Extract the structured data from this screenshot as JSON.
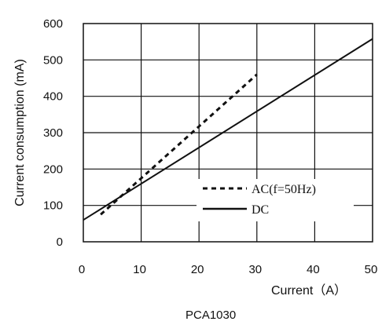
{
  "chart_data": {
    "type": "line",
    "xlabel": "Current（A）",
    "ylabel": "Current consumption (mA)",
    "xlim": [
      0,
      50
    ],
    "ylim": [
      0,
      600
    ],
    "x_ticks": [
      "0",
      "10",
      "20",
      "30",
      "40",
      "50"
    ],
    "y_ticks": [
      "0",
      "100",
      "200",
      "300",
      "400",
      "500",
      "600"
    ],
    "grid": true,
    "legend_position": "bottom-right",
    "series": [
      {
        "name": "AC(f=50Hz)",
        "style": "dashed",
        "x": [
          3,
          30
        ],
        "y": [
          75,
          460
        ]
      },
      {
        "name": "DC",
        "style": "solid",
        "x": [
          0,
          50
        ],
        "y": [
          60,
          558
        ]
      }
    ],
    "caption": "PCA1030"
  }
}
